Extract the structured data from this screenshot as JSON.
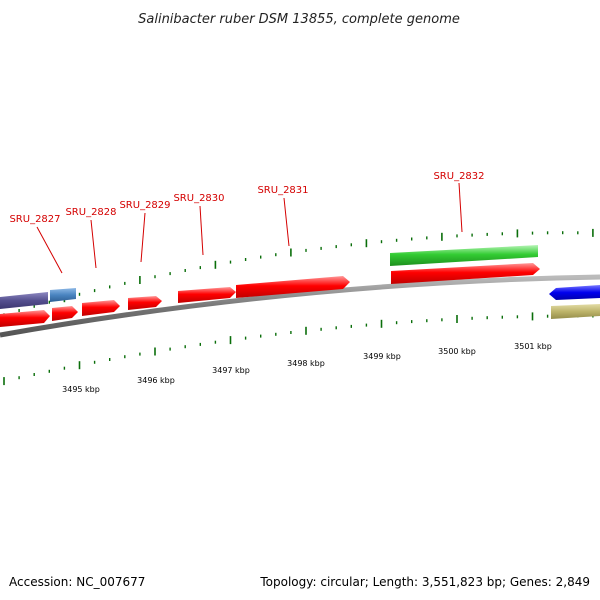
{
  "title": "Salinibacter ruber DSM 13855, complete genome",
  "accession_label": "Accession: NC_007677",
  "summary_label": "Topology: circular; Length: 3,551,823 bp; Genes: 2,849",
  "colors": {
    "gene_red": "#ff0000",
    "gene_green": "#33cc33",
    "gene_purple": "#55508f",
    "gene_steelblue": "#4a84c0",
    "gene_blue": "#0000ee",
    "gene_khaki": "#bdb46a",
    "backbone": "#888888",
    "tick": "#0a6e0a",
    "label": "#d40000"
  },
  "gene_labels": [
    "SRU_2827",
    "SRU_2828",
    "SRU_2829",
    "SRU_2830",
    "SRU_2831",
    "SRU_2832"
  ],
  "kbp_labels": [
    "3495 kbp",
    "3496 kbp",
    "3497 kbp",
    "3498 kbp",
    "3499 kbp",
    "3500 kbp",
    "3501 kbp"
  ]
}
